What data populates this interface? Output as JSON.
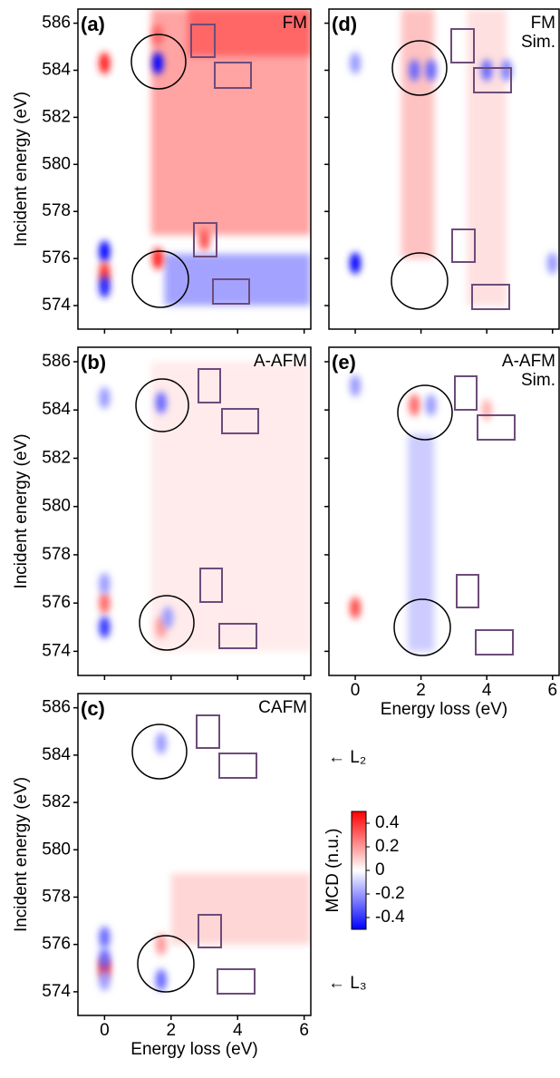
{
  "chart_data": [
    {
      "type": "heatmap",
      "panel_label": "(a)",
      "title": [
        "FM"
      ],
      "ylabel": "Incident energy (eV)",
      "xlim": [
        -0.8,
        6.2
      ],
      "ylim": [
        573,
        586.6
      ],
      "xticks": [
        0,
        2,
        4,
        6
      ],
      "yticks": [
        574,
        576,
        578,
        580,
        582,
        584,
        586
      ],
      "xtick_labels": false,
      "ytick_labels": true,
      "bands": [
        {
          "x": [
            1.4,
            6.2
          ],
          "y": [
            577,
            586.6
          ],
          "value": 0.18
        },
        {
          "x": [
            2.5,
            6.2
          ],
          "y": [
            584.6,
            586.6
          ],
          "value": 0.3
        },
        {
          "x": [
            1.8,
            6.2
          ],
          "y": [
            574,
            576.2
          ],
          "value": -0.18
        }
      ],
      "spots": [
        {
          "x": 0,
          "y": 584.3,
          "value": 0.45
        },
        {
          "x": 0,
          "y": 576.3,
          "value": -0.5
        },
        {
          "x": 0,
          "y": 575.4,
          "value": 0.4
        },
        {
          "x": 0,
          "y": 574.8,
          "value": -0.45
        },
        {
          "x": 1.6,
          "y": 584.3,
          "value": -0.5
        },
        {
          "x": 1.6,
          "y": 585.5,
          "value": 0.3
        },
        {
          "x": 1.6,
          "y": 576,
          "value": 0.45
        },
        {
          "x": 3,
          "y": 576.8,
          "value": 0.35
        }
      ]
    },
    {
      "type": "heatmap",
      "panel_label": "(d)",
      "title": [
        "FM",
        "Sim."
      ],
      "xlim": [
        -0.8,
        6.2
      ],
      "ylim": [
        573,
        586.6
      ],
      "xticks": [
        0,
        2,
        4,
        6
      ],
      "yticks": [
        574,
        576,
        578,
        580,
        582,
        584,
        586
      ],
      "xtick_labels": false,
      "ytick_labels": false,
      "bands": [
        {
          "x": [
            1.4,
            2.4
          ],
          "y": [
            576,
            586.6
          ],
          "value": 0.12
        },
        {
          "x": [
            3.4,
            4.6
          ],
          "y": [
            574,
            586.6
          ],
          "value": 0.06
        }
      ],
      "spots": [
        {
          "x": 0,
          "y": 575.8,
          "value": -0.5
        },
        {
          "x": 0,
          "y": 584.3,
          "value": -0.2
        },
        {
          "x": 1.8,
          "y": 584,
          "value": -0.3
        },
        {
          "x": 2.3,
          "y": 584,
          "value": -0.3
        },
        {
          "x": 4,
          "y": 584,
          "value": -0.3
        },
        {
          "x": 4.6,
          "y": 584,
          "value": -0.25
        },
        {
          "x": 6,
          "y": 575.8,
          "value": -0.2
        }
      ]
    },
    {
      "type": "heatmap",
      "panel_label": "(b)",
      "title": [
        "A-AFM"
      ],
      "ylabel": "Incident energy (eV)",
      "xlim": [
        -0.8,
        6.2
      ],
      "ylim": [
        573,
        586.6
      ],
      "xticks": [
        0,
        2,
        4,
        6
      ],
      "yticks": [
        574,
        576,
        578,
        580,
        582,
        584,
        586
      ],
      "xtick_labels": false,
      "ytick_labels": true,
      "bands": [
        {
          "x": [
            1.4,
            6.2
          ],
          "y": [
            574,
            586
          ],
          "value": 0.04
        }
      ],
      "spots": [
        {
          "x": 0,
          "y": 584.5,
          "value": -0.2
        },
        {
          "x": 0,
          "y": 576,
          "value": 0.3
        },
        {
          "x": 0,
          "y": 575,
          "value": -0.4
        },
        {
          "x": 0,
          "y": 576.8,
          "value": -0.2
        },
        {
          "x": 1.7,
          "y": 584.3,
          "value": -0.3
        },
        {
          "x": 1.7,
          "y": 575,
          "value": 0.2
        },
        {
          "x": 1.9,
          "y": 575.4,
          "value": -0.2
        }
      ]
    },
    {
      "type": "heatmap",
      "panel_label": "(e)",
      "title": [
        "A-AFM",
        "Sim."
      ],
      "xlim": [
        -0.8,
        6.2
      ],
      "ylim": [
        573,
        586.6
      ],
      "xticks": [
        0,
        2,
        4,
        6
      ],
      "yticks": [
        574,
        576,
        578,
        580,
        582,
        584,
        586
      ],
      "xtick_labels": true,
      "ytick_labels": false,
      "xlabel": "Energy loss (eV)",
      "bands": [
        {
          "x": [
            1.6,
            2.4
          ],
          "y": [
            574,
            583
          ],
          "value": -0.1
        }
      ],
      "spots": [
        {
          "x": 0,
          "y": 575.8,
          "value": 0.35
        },
        {
          "x": 0,
          "y": 585,
          "value": -0.2
        },
        {
          "x": 1.8,
          "y": 584.2,
          "value": 0.3
        },
        {
          "x": 2.3,
          "y": 584.2,
          "value": -0.2
        },
        {
          "x": 4,
          "y": 584,
          "value": 0.15
        }
      ]
    },
    {
      "type": "heatmap",
      "panel_label": "(c)",
      "title": [
        "CAFM"
      ],
      "ylabel": "Incident energy (eV)",
      "xlabel": "Energy loss (eV)",
      "xlim": [
        -0.8,
        6.2
      ],
      "ylim": [
        573,
        586.6
      ],
      "xticks": [
        0,
        2,
        4,
        6
      ],
      "yticks": [
        574,
        576,
        578,
        580,
        582,
        584,
        586
      ],
      "xtick_labels": true,
      "ytick_labels": true,
      "bands": [
        {
          "x": [
            2,
            6.2
          ],
          "y": [
            576,
            579
          ],
          "value": 0.08
        }
      ],
      "spots": [
        {
          "x": 0,
          "y": 575,
          "value": 0.5
        },
        {
          "x": 0,
          "y": 575.4,
          "value": -0.3
        },
        {
          "x": 0,
          "y": 576.3,
          "value": -0.3
        },
        {
          "x": 0,
          "y": 574.5,
          "value": -0.2
        },
        {
          "x": 1.7,
          "y": 584.5,
          "value": -0.2
        },
        {
          "x": 1.7,
          "y": 576,
          "value": 0.2
        },
        {
          "x": 1.7,
          "y": 574.5,
          "value": -0.3
        }
      ]
    },
    {
      "type": "colorbar",
      "label": "MCD (n.u.)",
      "lim": [
        -0.5,
        0.5
      ],
      "ticks": [
        0.4,
        0.2,
        0,
        -0.2,
        -0.4
      ],
      "colors": [
        "#0000ff",
        "#ffffff",
        "#ff0000"
      ],
      "edge_labels": [
        "← L₂",
        "← L₃"
      ]
    }
  ]
}
